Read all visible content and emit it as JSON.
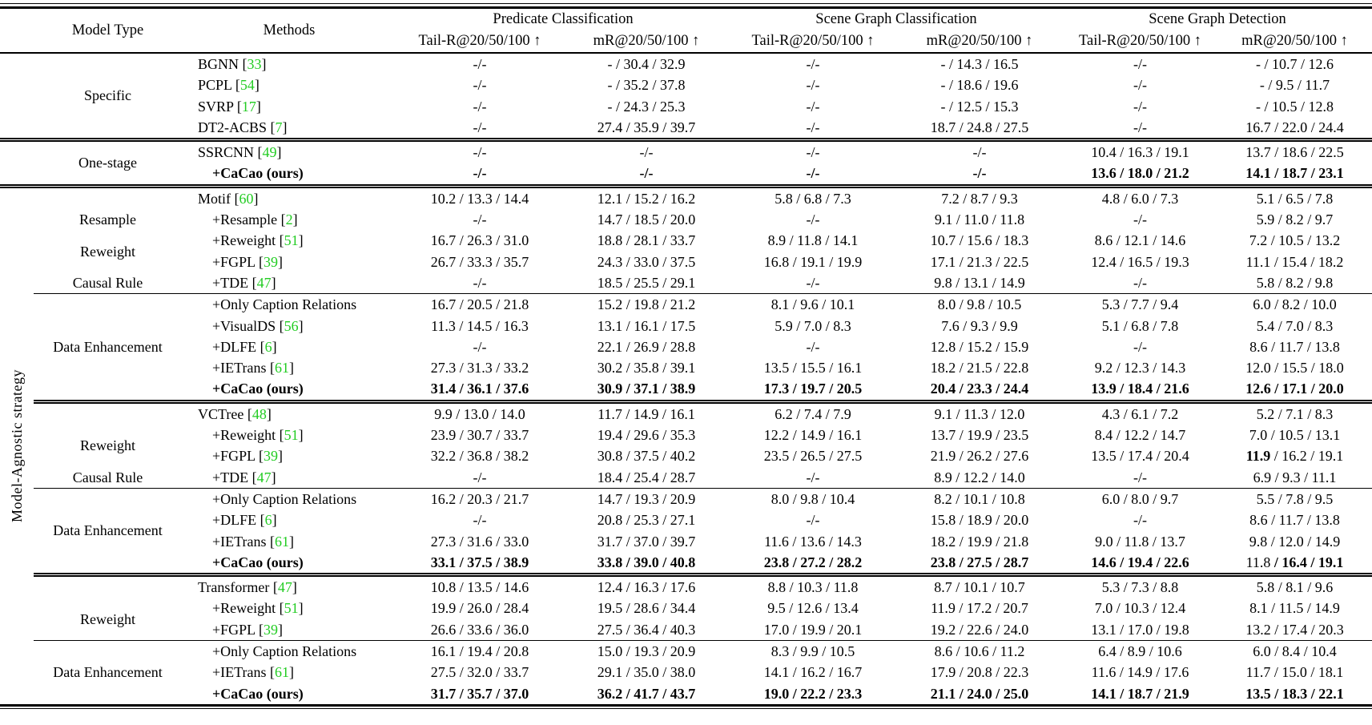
{
  "colors": {
    "citation_green": "#22CC22"
  },
  "header": {
    "model_type": "Model Type",
    "methods": "Methods",
    "groups": [
      {
        "label": "Predicate Classification"
      },
      {
        "label": "Scene Graph Classification"
      },
      {
        "label": "Scene Graph Detection"
      }
    ],
    "subcols": [
      "Tail-R@20/50/100 ↑",
      "mR@20/50/100 ↑"
    ]
  },
  "left_col_spans": [
    {
      "rows": 4,
      "label": ""
    },
    {
      "rows": 2,
      "label": ""
    },
    {
      "rows": 24,
      "label": "Model-Agnostic strategy"
    }
  ],
  "rows": [
    {
      "rule": null,
      "bold": false,
      "model_type": {
        "label": "Specific",
        "rowspan": 4
      },
      "method": {
        "name": "BGNN",
        "cite": "33",
        "bold": false
      },
      "cells": [
        "-/-",
        "- / 30.4 / 32.9",
        "-/-",
        "- / 14.3 / 16.5",
        "-/-",
        "- / 10.7 / 12.6"
      ]
    },
    {
      "rule": null,
      "bold": false,
      "model_type": null,
      "method": {
        "name": "PCPL",
        "cite": "54",
        "bold": false
      },
      "cells": [
        "-/-",
        "- / 35.2 / 37.8",
        "-/-",
        "- / 18.6 / 19.6",
        "-/-",
        "- / 9.5 / 11.7"
      ]
    },
    {
      "rule": null,
      "bold": false,
      "model_type": null,
      "method": {
        "name": "SVRP",
        "cite": "17",
        "bold": false
      },
      "cells": [
        "-/-",
        "- / 24.3 / 25.3",
        "-/-",
        "- / 12.5 / 15.3",
        "-/-",
        "- / 10.5 / 12.8"
      ]
    },
    {
      "rule": null,
      "bold": false,
      "model_type": null,
      "method": {
        "name": "DT2-ACBS",
        "cite": "7",
        "bold": false
      },
      "cells": [
        "-/-",
        "27.4 / 35.9 / 39.7",
        "-/-",
        "18.7 / 24.8 / 27.5",
        "-/-",
        "16.7 / 22.0 / 24.4"
      ]
    },
    {
      "rule": "double",
      "bold": false,
      "model_type": {
        "label": "One-stage",
        "rowspan": 2
      },
      "method": {
        "name": "SSRCNN",
        "cite": "49",
        "bold": false
      },
      "cells": [
        "-/-",
        "-/-",
        "-/-",
        "-/-",
        "10.4 / 16.3 / 19.1",
        "13.7 / 18.6 / 22.5"
      ]
    },
    {
      "rule": null,
      "bold": true,
      "model_type": null,
      "method": {
        "name": "+CaCao (ours)",
        "cite": null,
        "bold": true
      },
      "cells": [
        "-/-",
        "-/-",
        "-/-",
        "-/-",
        "13.6 / 18.0 / 21.2",
        "14.1 / 18.7 / 23.1"
      ]
    },
    {
      "rule": "double",
      "bold": false,
      "model_type": {
        "label": "",
        "rowspan": 1
      },
      "method": {
        "name": "Motif",
        "cite": "60",
        "bold": false
      },
      "cells": [
        "10.2 / 13.3 / 14.4",
        "12.1 / 15.2 / 16.2",
        "5.8 / 6.8 / 7.3",
        "7.2 / 8.7 / 9.3",
        "4.8 / 6.0 / 7.3",
        "5.1 / 6.5 / 7.8"
      ]
    },
    {
      "rule": null,
      "bold": false,
      "model_type": {
        "label": "Resample",
        "rowspan": 1
      },
      "method": {
        "name": "+Resample",
        "cite": "2",
        "bold": false
      },
      "cells": [
        "-/-",
        "14.7 / 18.5 / 20.0",
        "-/-",
        "9.1 / 11.0 / 11.8",
        "-/-",
        "5.9 / 8.2 / 9.7"
      ]
    },
    {
      "rule": null,
      "bold": false,
      "model_type": {
        "label": "Reweight",
        "rowspan": 2
      },
      "method": {
        "name": "+Reweight",
        "cite": "51",
        "bold": false
      },
      "cells": [
        "16.7 / 26.3 / 31.0",
        "18.8 / 28.1 / 33.7",
        "8.9 / 11.8 / 14.1",
        "10.7 / 15.6 / 18.3",
        "8.6 / 12.1 / 14.6",
        "7.2 / 10.5 / 13.2"
      ]
    },
    {
      "rule": null,
      "bold": false,
      "model_type": null,
      "method": {
        "name": "+FGPL",
        "cite": "39",
        "bold": false
      },
      "cells": [
        "26.7 / 33.3 / 35.7",
        "24.3 / 33.0 / 37.5",
        "16.8 / 19.1 / 19.9",
        "17.1 / 21.3 / 22.5",
        "12.4 / 16.5 / 19.3",
        "11.1 / 15.4 / 18.2"
      ]
    },
    {
      "rule": null,
      "bold": false,
      "model_type": {
        "label": "Causal Rule",
        "rowspan": 1
      },
      "method": {
        "name": "+TDE",
        "cite": "47",
        "bold": false
      },
      "cells": [
        "-/-",
        "18.5 / 25.5 / 29.1",
        "-/-",
        "9.8 / 13.1 / 14.9",
        "-/-",
        "5.8 / 8.2 / 9.8"
      ]
    },
    {
      "rule": "single",
      "bold": false,
      "model_type": {
        "label": "Data Enhancement",
        "rowspan": 5
      },
      "method": {
        "name": "+Only Caption Relations",
        "cite": null,
        "bold": false
      },
      "cells": [
        "16.7 / 20.5 / 21.8",
        "15.2 / 19.8 / 21.2",
        "8.1 / 9.6 / 10.1",
        "8.0 / 9.8 / 10.5",
        "5.3 / 7.7 / 9.4",
        "6.0 / 8.2 / 10.0"
      ]
    },
    {
      "rule": null,
      "bold": false,
      "model_type": null,
      "method": {
        "name": "+VisualDS",
        "cite": "56",
        "bold": false
      },
      "cells": [
        "11.3 / 14.5 / 16.3",
        "13.1 / 16.1 / 17.5",
        "5.9 / 7.0 / 8.3",
        "7.6 / 9.3 / 9.9",
        "5.1 / 6.8 / 7.8",
        "5.4 / 7.0 / 8.3"
      ]
    },
    {
      "rule": null,
      "bold": false,
      "model_type": null,
      "method": {
        "name": "+DLFE",
        "cite": "6",
        "bold": false
      },
      "cells": [
        "-/-",
        "22.1 / 26.9 / 28.8",
        "-/-",
        "12.8 / 15.2 / 15.9",
        "-/-",
        "8.6 / 11.7 / 13.8"
      ]
    },
    {
      "rule": null,
      "bold": false,
      "model_type": null,
      "method": {
        "name": "+IETrans",
        "cite": "61",
        "bold": false
      },
      "cells": [
        "27.3 / 31.3 / 33.2",
        "30.2 / 35.8 / 39.1",
        "13.5 / 15.5 / 16.1",
        "18.2 / 21.5 / 22.8",
        "9.2 / 12.3 / 14.3",
        "12.0 / 15.5 / 18.0"
      ]
    },
    {
      "rule": null,
      "bold": true,
      "model_type": null,
      "method": {
        "name": "+CaCao (ours)",
        "cite": null,
        "bold": true
      },
      "cells": [
        "31.4 / 36.1 / 37.6",
        "30.9 / 37.1 / 38.9",
        "17.3 / 19.7 / 20.5",
        "20.4 / 23.3 / 24.4",
        "13.9 / 18.4 / 21.6",
        "12.6 / 17.1 / 20.0"
      ]
    },
    {
      "rule": "double",
      "bold": false,
      "model_type": {
        "label": "",
        "rowspan": 1
      },
      "method": {
        "name": "VCTree",
        "cite": "48",
        "bold": false
      },
      "cells": [
        "9.9 / 13.0 / 14.0",
        "11.7 / 14.9 / 16.1",
        "6.2 / 7.4 / 7.9",
        "9.1 / 11.3 / 12.0",
        "4.3 / 6.1 / 7.2",
        "5.2 / 7.1 / 8.3"
      ]
    },
    {
      "rule": null,
      "bold": false,
      "model_type": {
        "label": "Reweight",
        "rowspan": 2
      },
      "method": {
        "name": "+Reweight",
        "cite": "51",
        "bold": false
      },
      "cells": [
        "23.9 / 30.7 / 33.7",
        "19.4 / 29.6 / 35.3",
        "12.2 / 14.9 / 16.1",
        "13.7 / 19.9 / 23.5",
        "8.4 / 12.2 / 14.7",
        "7.0 / 10.5 / 13.1"
      ]
    },
    {
      "rule": null,
      "bold": false,
      "model_type": null,
      "method": {
        "name": "+FGPL",
        "cite": "39",
        "bold": false
      },
      "cells": [
        "32.2 / 36.8 / 38.2",
        "30.8 / 37.5 / 40.2",
        "23.5 / 26.5 / 27.5",
        "21.9 / 26.2 / 27.6",
        "13.5 / 17.4 / 20.4",
        {
          "parts": [
            {
              "text": "11.9",
              "bold": true
            },
            {
              "text": " / 16.2 / 19.1",
              "bold": false
            }
          ]
        }
      ]
    },
    {
      "rule": null,
      "bold": false,
      "model_type": {
        "label": "Causal Rule",
        "rowspan": 1
      },
      "method": {
        "name": "+TDE",
        "cite": "47",
        "bold": false
      },
      "cells": [
        "-/-",
        "18.4 / 25.4 / 28.7",
        "-/-",
        "8.9 / 12.2 / 14.0",
        "-/-",
        "6.9 / 9.3 / 11.1"
      ]
    },
    {
      "rule": "single",
      "bold": false,
      "model_type": {
        "label": "Data Enhancement",
        "rowspan": 4
      },
      "method": {
        "name": "+Only Caption Relations",
        "cite": null,
        "bold": false
      },
      "cells": [
        "16.2 / 20.3 / 21.7",
        "14.7 / 19.3 / 20.9",
        "8.0 / 9.8 / 10.4",
        "8.2 / 10.1 / 10.8",
        "6.0 / 8.0 / 9.7",
        "5.5 / 7.8 / 9.5"
      ]
    },
    {
      "rule": null,
      "bold": false,
      "model_type": null,
      "method": {
        "name": "+DLFE",
        "cite": "6",
        "bold": false
      },
      "cells": [
        "-/-",
        "20.8 / 25.3 / 27.1",
        "-/-",
        "15.8 / 18.9 / 20.0",
        "-/-",
        "8.6 / 11.7 / 13.8"
      ]
    },
    {
      "rule": null,
      "bold": false,
      "model_type": null,
      "method": {
        "name": "+IETrans",
        "cite": "61",
        "bold": false
      },
      "cells": [
        "27.3 / 31.6 / 33.0",
        "31.7 / 37.0 / 39.7",
        "11.6 / 13.6 / 14.3",
        "18.2 / 19.9 / 21.8",
        "9.0 / 11.8 / 13.7",
        "9.8 / 12.0 / 14.9"
      ]
    },
    {
      "rule": null,
      "bold": true,
      "model_type": null,
      "method": {
        "name": "+CaCao (ours)",
        "cite": null,
        "bold": true
      },
      "cells": [
        "33.1 / 37.5 / 38.9",
        "33.8 / 39.0 / 40.8",
        "23.8 / 27.2 / 28.2",
        "23.8 / 27.5 / 28.7",
        "14.6 / 19.4 / 22.6",
        {
          "parts": [
            {
              "text": "11.8",
              "bold": false
            },
            {
              "text": " / 16.4 / 19.1",
              "bold": true
            }
          ]
        }
      ]
    },
    {
      "rule": "double",
      "bold": false,
      "model_type": {
        "label": "",
        "rowspan": 1
      },
      "method": {
        "name": "Transformer",
        "cite": "47",
        "bold": false
      },
      "cells": [
        "10.8 / 13.5 / 14.6",
        "12.4 / 16.3 / 17.6",
        "8.8 / 10.3 / 11.8",
        "8.7 / 10.1 / 10.7",
        "5.3 / 7.3 / 8.8",
        "5.8 / 8.1 / 9.6"
      ]
    },
    {
      "rule": null,
      "bold": false,
      "model_type": {
        "label": "Reweight",
        "rowspan": 2
      },
      "method": {
        "name": "+Reweight",
        "cite": "51",
        "bold": false
      },
      "cells": [
        "19.9 / 26.0 / 28.4",
        "19.5 / 28.6 / 34.4",
        "9.5 / 12.6 / 13.4",
        "11.9 / 17.2 / 20.7",
        "7.0 / 10.3 / 12.4",
        "8.1 / 11.5 / 14.9"
      ]
    },
    {
      "rule": null,
      "bold": false,
      "model_type": null,
      "method": {
        "name": "+FGPL",
        "cite": "39",
        "bold": false
      },
      "cells": [
        "26.6 / 33.6 / 36.0",
        "27.5 / 36.4 / 40.3",
        "17.0 / 19.9 / 20.1",
        "19.2 / 22.6 / 24.0",
        "13.1 / 17.0 / 19.8",
        "13.2 / 17.4 / 20.3"
      ]
    },
    {
      "rule": "single",
      "bold": false,
      "model_type": {
        "label": "Data Enhancement",
        "rowspan": 3
      },
      "method": {
        "name": "+Only Caption Relations",
        "cite": null,
        "bold": false
      },
      "cells": [
        "16.1 / 19.4 / 20.8",
        "15.0 / 19.3 / 20.9",
        "8.3 / 9.9 / 10.5",
        "8.6 / 10.6 / 11.2",
        "6.4 / 8.9 / 10.6",
        "6.0 / 8.4 / 10.4"
      ]
    },
    {
      "rule": null,
      "bold": false,
      "model_type": null,
      "method": {
        "name": "+IETrans",
        "cite": "61",
        "bold": false
      },
      "cells": [
        "27.5 / 32.0 / 33.7",
        "29.1 / 35.0 / 38.0",
        "14.1 / 16.2 / 16.7",
        "17.9 / 20.8 / 22.3",
        "11.6 / 14.9 / 17.6",
        "11.7 / 15.0 / 18.1"
      ]
    },
    {
      "rule": null,
      "bold": true,
      "model_type": null,
      "method": {
        "name": "+CaCao (ours)",
        "cite": null,
        "bold": true
      },
      "cells": [
        "31.7 / 35.7 / 37.0",
        "36.2 / 41.7 / 43.7",
        "19.0 / 22.2 / 23.3",
        "21.1 / 24.0 / 25.0",
        "14.1 / 18.7 / 21.9",
        "13.5 / 18.3 / 22.1"
      ]
    }
  ]
}
